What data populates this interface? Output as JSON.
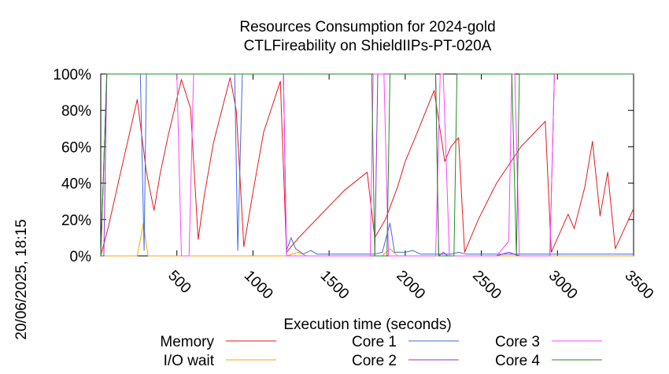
{
  "chart_data": {
    "type": "line",
    "title": [
      "Resources Consumption for 2024-gold",
      "CTLFireability on ShieldIIPs-PT-020A"
    ],
    "xlabel": "Execution time (seconds)",
    "ylabel": "",
    "side_label": "20/06/2025, 18:15",
    "xlim": [
      0,
      3500
    ],
    "ylim": [
      0,
      100
    ],
    "x_ticks": [
      500,
      1000,
      1500,
      2000,
      2500,
      3000,
      3500
    ],
    "y_ticks": [
      0,
      20,
      40,
      60,
      80,
      100
    ],
    "y_tick_suffix": "%",
    "grid": false,
    "legend_position": "bottom",
    "series": [
      {
        "name": "Memory",
        "color": "#e41a1c",
        "points": [
          [
            0,
            0
          ],
          [
            50,
            16
          ],
          [
            120,
            42
          ],
          [
            240,
            86
          ],
          [
            300,
            46
          ],
          [
            350,
            25
          ],
          [
            390,
            45
          ],
          [
            440,
            65
          ],
          [
            530,
            97
          ],
          [
            590,
            81
          ],
          [
            640,
            9
          ],
          [
            680,
            33
          ],
          [
            740,
            62
          ],
          [
            850,
            98
          ],
          [
            890,
            80
          ],
          [
            940,
            5
          ],
          [
            1000,
            35
          ],
          [
            1070,
            68
          ],
          [
            1180,
            96
          ],
          [
            1220,
            2
          ],
          [
            1300,
            10
          ],
          [
            1450,
            23
          ],
          [
            1600,
            36
          ],
          [
            1750,
            46
          ],
          [
            1800,
            10
          ],
          [
            1870,
            20
          ],
          [
            1950,
            38
          ],
          [
            2000,
            52
          ],
          [
            2080,
            68
          ],
          [
            2190,
            91
          ],
          [
            2260,
            52
          ],
          [
            2300,
            60
          ],
          [
            2350,
            65
          ],
          [
            2390,
            2
          ],
          [
            2480,
            20
          ],
          [
            2600,
            40
          ],
          [
            2760,
            60
          ],
          [
            2920,
            74
          ],
          [
            2960,
            2
          ],
          [
            3070,
            23
          ],
          [
            3110,
            15
          ],
          [
            3180,
            38
          ],
          [
            3230,
            63
          ],
          [
            3280,
            22
          ],
          [
            3330,
            46
          ],
          [
            3380,
            4
          ],
          [
            3500,
            26
          ]
        ]
      },
      {
        "name": "I/O wait",
        "color": "#ffa500",
        "points": [
          [
            0,
            0
          ],
          [
            240,
            0
          ],
          [
            280,
            18
          ],
          [
            310,
            0
          ],
          [
            1220,
            0
          ],
          [
            1300,
            2
          ],
          [
            1350,
            0
          ],
          [
            1850,
            0
          ],
          [
            1900,
            4
          ],
          [
            1950,
            0
          ],
          [
            3500,
            0
          ]
        ]
      },
      {
        "name": "Core 1",
        "color": "#4169e1",
        "points": [
          [
            0,
            0
          ],
          [
            40,
            100
          ],
          [
            200,
            100
          ],
          [
            260,
            100
          ],
          [
            285,
            3
          ],
          [
            300,
            100
          ],
          [
            340,
            100
          ],
          [
            880,
            100
          ],
          [
            900,
            3
          ],
          [
            930,
            100
          ],
          [
            1200,
            100
          ],
          [
            1220,
            3
          ],
          [
            1250,
            10
          ],
          [
            1280,
            4
          ],
          [
            1330,
            1
          ],
          [
            1380,
            3
          ],
          [
            1420,
            1
          ],
          [
            1500,
            1
          ],
          [
            1600,
            1
          ],
          [
            1700,
            1
          ],
          [
            1800,
            1
          ],
          [
            1850,
            2
          ],
          [
            1900,
            18
          ],
          [
            1930,
            2
          ],
          [
            2000,
            2
          ],
          [
            2050,
            3
          ],
          [
            2100,
            1
          ],
          [
            2200,
            1
          ],
          [
            2300,
            1
          ],
          [
            2350,
            2
          ],
          [
            2400,
            1
          ],
          [
            2500,
            1
          ],
          [
            2600,
            1
          ],
          [
            2700,
            1
          ],
          [
            2800,
            1
          ],
          [
            2900,
            1
          ],
          [
            3000,
            1
          ],
          [
            3500,
            1
          ]
        ]
      },
      {
        "name": "Core 2",
        "color": "#9932cc",
        "points": [
          [
            0,
            0
          ],
          [
            20,
            0
          ],
          [
            40,
            100
          ],
          [
            1200,
            100
          ],
          [
            1220,
            0
          ],
          [
            1800,
            0
          ],
          [
            1820,
            100
          ],
          [
            1840,
            100
          ],
          [
            1880,
            100
          ],
          [
            2200,
            100
          ],
          [
            2220,
            0
          ],
          [
            2250,
            2
          ],
          [
            2280,
            0
          ],
          [
            2600,
            0
          ],
          [
            2680,
            2
          ],
          [
            2750,
            0
          ],
          [
            2950,
            0
          ],
          [
            2980,
            100
          ],
          [
            3500,
            100
          ]
        ]
      },
      {
        "name": "Core 3",
        "color": "#ff44ff",
        "points": [
          [
            0,
            0
          ],
          [
            40,
            100
          ],
          [
            500,
            100
          ],
          [
            530,
            0
          ],
          [
            580,
            0
          ],
          [
            610,
            100
          ],
          [
            1200,
            100
          ],
          [
            1220,
            0
          ],
          [
            1770,
            0
          ],
          [
            1790,
            100
          ],
          [
            1860,
            100
          ],
          [
            1890,
            0
          ],
          [
            2200,
            0
          ],
          [
            2230,
            100
          ],
          [
            2250,
            100
          ],
          [
            2290,
            0
          ],
          [
            2600,
            0
          ],
          [
            2680,
            8
          ],
          [
            2700,
            100
          ],
          [
            2720,
            100
          ],
          [
            2750,
            0
          ],
          [
            2950,
            0
          ],
          [
            2980,
            100
          ],
          [
            3500,
            100
          ]
        ]
      },
      {
        "name": "Core 4",
        "color": "#228b22",
        "points": [
          [
            0,
            0
          ],
          [
            40,
            100
          ],
          [
            1780,
            100
          ],
          [
            1800,
            0
          ],
          [
            1880,
            0
          ],
          [
            1900,
            100
          ],
          [
            2200,
            100
          ],
          [
            2220,
            0
          ],
          [
            2320,
            0
          ],
          [
            2340,
            100
          ],
          [
            2700,
            100
          ],
          [
            2730,
            0
          ],
          [
            2750,
            100
          ],
          [
            3500,
            100
          ]
        ]
      }
    ]
  }
}
